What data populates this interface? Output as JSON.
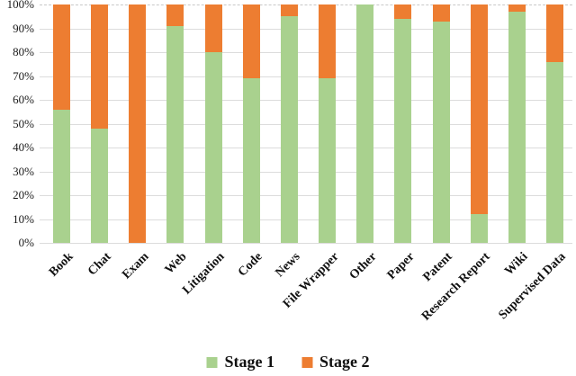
{
  "chart_data": {
    "type": "bar",
    "stacked": true,
    "percent": true,
    "title": "",
    "xlabel": "",
    "ylabel": "",
    "ylim": [
      0,
      100
    ],
    "grid": true,
    "legend_position": "bottom",
    "ytick_labels": [
      "0%",
      "10%",
      "20%",
      "30%",
      "40%",
      "50%",
      "60%",
      "70%",
      "80%",
      "90%",
      "100%"
    ],
    "categories": [
      "Book",
      "Chat",
      "Exam",
      "Web",
      "Litigation",
      "Code",
      "News",
      "File Wrapper",
      "Other",
      "Paper",
      "Patent",
      "Research Report",
      "Wiki",
      "Supervised Data"
    ],
    "series": [
      {
        "name": "Stage 1",
        "color": "#A9D18E",
        "values": [
          56,
          48,
          0,
          91,
          80,
          69,
          95,
          69,
          100,
          94,
          93,
          12,
          97,
          76
        ]
      },
      {
        "name": "Stage 2",
        "color": "#ED7D31",
        "values": [
          44,
          52,
          100,
          9,
          20,
          31,
          5,
          31,
          0,
          6,
          7,
          88,
          3,
          24
        ]
      }
    ]
  },
  "colors": {
    "stage1": "#A9D18E",
    "stage2": "#ED7D31",
    "gridline": "#DCDCDC",
    "text": "#111111"
  }
}
